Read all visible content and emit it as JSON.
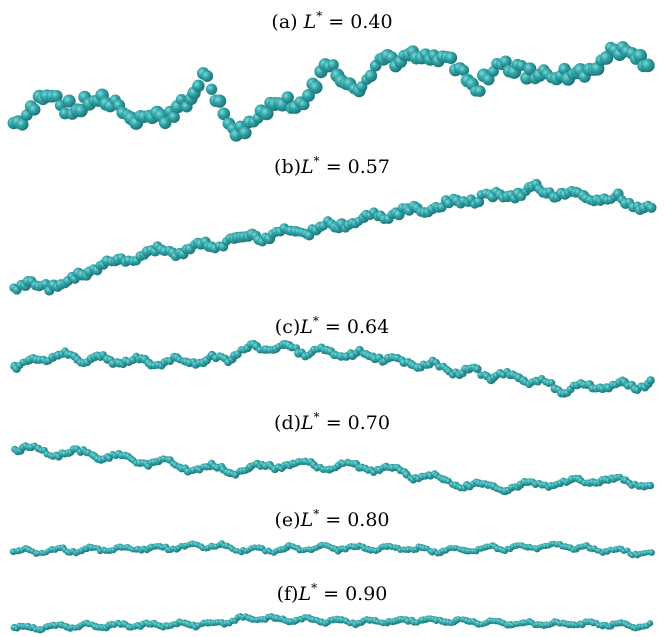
{
  "panels": [
    {
      "id": "a",
      "label_prefix": "(a) ",
      "variable": "L",
      "superscript": "*",
      "relation": " = ",
      "value": "0.40"
    },
    {
      "id": "b",
      "label_prefix": "(b)",
      "variable": "L",
      "superscript": "*",
      "relation": " = ",
      "value": "0.57"
    },
    {
      "id": "c",
      "label_prefix": "(c)",
      "variable": "L",
      "superscript": "*",
      "relation": " = ",
      "value": "0.64"
    },
    {
      "id": "d",
      "label_prefix": "(d)",
      "variable": "L",
      "superscript": "*",
      "relation": " = ",
      "value": "0.70"
    },
    {
      "id": "e",
      "label_prefix": "(e)",
      "variable": "L",
      "superscript": "*",
      "relation": " = ",
      "value": "0.80"
    },
    {
      "id": "f",
      "label_prefix": "(f)",
      "variable": "L",
      "superscript": "*",
      "relation": " = ",
      "value": "0.90"
    }
  ],
  "bead_color": "#2fa3a6",
  "bead_highlight": "#7fd9d9",
  "bead_shadow": "#1b6f72"
}
